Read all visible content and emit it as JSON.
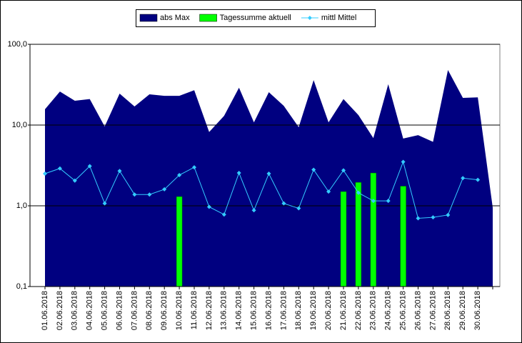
{
  "chart_data": {
    "type": "combo",
    "categories": [
      "01.06.2018",
      "02.06.2018",
      "03.06.2018",
      "04.06.2018",
      "05.06.2018",
      "06.06.2018",
      "07.06.2018",
      "08.06.2018",
      "09.06.2018",
      "10.06.2018",
      "11.06.2018",
      "12.06.2018",
      "13.06.2018",
      "14.06.2018",
      "15.06.2018",
      "16.06.2018",
      "17.06.2018",
      "18.06.2018",
      "19.06.2018",
      "20.06.2018",
      "21.06.2018",
      "22.06.2018",
      "23.06.2018",
      "24.06.2018",
      "25.06.2018",
      "26.06.2018",
      "27.06.2018",
      "28.06.2018",
      "29.06.2018",
      "30.06.2018",
      null
    ],
    "series": [
      {
        "name": "abs Max",
        "type": "area",
        "color": "#000080",
        "values": [
          15.7,
          26,
          20,
          21,
          9.6,
          24.5,
          17,
          24,
          23,
          23,
          27,
          8.2,
          13,
          29,
          10.8,
          25.5,
          17.3,
          9.4,
          36,
          10.8,
          21,
          13.3,
          6.9,
          32,
          6.8,
          7.5,
          6.2,
          48,
          21.7,
          22,
          0.95
        ]
      },
      {
        "name": "Tagessumme aktuell",
        "type": "bar",
        "color": "#00ff00",
        "values": [
          null,
          null,
          null,
          null,
          null,
          null,
          null,
          null,
          null,
          1.3,
          null,
          null,
          null,
          null,
          null,
          null,
          null,
          null,
          null,
          null,
          1.5,
          1.95,
          2.55,
          null,
          1.75,
          null,
          null,
          null,
          null,
          null,
          null
        ]
      },
      {
        "name": "mittl Mittel",
        "type": "line",
        "color": "#33ccff",
        "values": [
          2.5,
          2.9,
          2.05,
          3.1,
          1.07,
          2.7,
          1.38,
          1.38,
          1.6,
          2.4,
          3.0,
          0.97,
          0.78,
          2.55,
          0.88,
          2.5,
          1.07,
          0.93,
          2.8,
          1.5,
          2.75,
          1.45,
          1.15,
          1.15,
          3.5,
          0.7,
          0.72,
          0.77,
          2.2,
          2.1,
          null
        ]
      }
    ],
    "ylim": [
      0.1,
      100
    ],
    "log_scale": true,
    "yticks": [
      {
        "value": 0.1,
        "label": "0,1"
      },
      {
        "value": 1,
        "label": "1,0"
      },
      {
        "value": 10,
        "label": "10,0"
      },
      {
        "value": 100,
        "label": "100,0"
      }
    ],
    "grid": true,
    "legend": "top"
  }
}
